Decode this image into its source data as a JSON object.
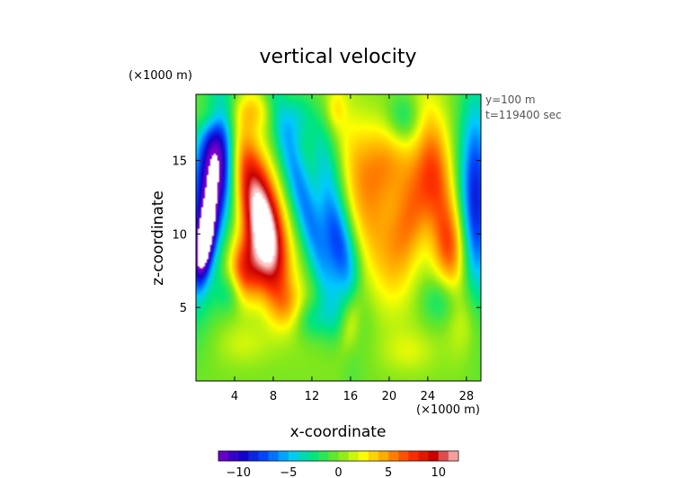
{
  "chart_data": {
    "type": "heatmap",
    "title": "vertical velocity",
    "xlabel": "x-coordinate",
    "ylabel": "z-coordinate",
    "x_unit_label": "(×1000 m)",
    "y_unit_label": "(×1000 m)",
    "annotations": [
      "y=100 m",
      "t=119400 sec"
    ],
    "xlim": [
      0,
      29.5
    ],
    "ylim": [
      0,
      19.5
    ],
    "x_ticks": [
      4,
      8,
      12,
      16,
      20,
      24,
      28
    ],
    "y_ticks": [
      5,
      10,
      15
    ],
    "x_tick_labels": [
      "4",
      "8",
      "12",
      "16",
      "20",
      "24",
      "28"
    ],
    "y_tick_labels": [
      "5",
      "10",
      "15"
    ],
    "colorbar": {
      "range": [
        -12,
        12
      ],
      "ticks": [
        -10,
        -5,
        0,
        5,
        10
      ],
      "tick_labels": [
        "−10",
        "−5",
        "0",
        "5",
        "10"
      ],
      "stops": [
        "#7a00c8",
        "#1400c8",
        "#0050ff",
        "#00c8ff",
        "#00e678",
        "#78e61e",
        "#ffff00",
        "#ffa000",
        "#ff3200",
        "#c80000",
        "#ffc8c8"
      ]
    },
    "grid": false,
    "features": [
      {
        "x": 1.3,
        "z": 13.0,
        "value": -9.5,
        "sx": 1.4,
        "sz": 5.0,
        "tilt": 0.15
      },
      {
        "x": 2.6,
        "z": 15.5,
        "value": -6.0,
        "sx": 1.2,
        "sz": 3.0,
        "tilt": 0.1
      },
      {
        "x": 0.9,
        "z": 9.5,
        "value": -12.0,
        "sx": 0.6,
        "sz": 1.8,
        "tilt": 0.2
      },
      {
        "x": 5.8,
        "z": 13.5,
        "value": 6.5,
        "sx": 1.5,
        "sz": 4.5,
        "tilt": -0.45
      },
      {
        "x": 7.1,
        "z": 9.8,
        "value": 11.0,
        "sx": 1.3,
        "sz": 2.8,
        "tilt": -0.2
      },
      {
        "x": 5.0,
        "z": 7.5,
        "value": 7.0,
        "sx": 1.2,
        "sz": 1.6,
        "tilt": 0.0
      },
      {
        "x": 11.0,
        "z": 12.5,
        "value": -6.0,
        "sx": 1.0,
        "sz": 6.0,
        "tilt": -0.4
      },
      {
        "x": 14.8,
        "z": 9.5,
        "value": -8.0,
        "sx": 1.2,
        "sz": 3.0,
        "tilt": -0.3
      },
      {
        "x": 13.5,
        "z": 15.5,
        "value": -4.0,
        "sx": 1.3,
        "sz": 2.5,
        "tilt": -0.3
      },
      {
        "x": 17.5,
        "z": 12.0,
        "value": 4.5,
        "sx": 2.2,
        "sz": 4.5,
        "tilt": -0.4
      },
      {
        "x": 20.0,
        "z": 15.0,
        "value": 4.0,
        "sx": 2.0,
        "sz": 2.0,
        "tilt": 0.0
      },
      {
        "x": 22.5,
        "z": 11.5,
        "value": 5.0,
        "sx": 1.5,
        "sz": 3.0,
        "tilt": 0.3
      },
      {
        "x": 25.2,
        "z": 13.0,
        "value": 5.0,
        "sx": 1.3,
        "sz": 4.5,
        "tilt": -0.2
      },
      {
        "x": 26.5,
        "z": 9.0,
        "value": 4.0,
        "sx": 1.3,
        "sz": 2.0,
        "tilt": 0.0
      },
      {
        "x": 28.9,
        "z": 12.0,
        "value": -9.0,
        "sx": 1.2,
        "sz": 5.0,
        "tilt": 0.0
      },
      {
        "x": 21.5,
        "z": 17.8,
        "value": -3.0,
        "sx": 1.2,
        "sz": 1.2,
        "tilt": 0.0
      },
      {
        "x": 12.0,
        "z": 4.2,
        "value": -3.0,
        "sx": 1.5,
        "sz": 1.0,
        "tilt": 0.0
      },
      {
        "x": 9.5,
        "z": 5.0,
        "value": 3.0,
        "sx": 1.3,
        "sz": 1.2,
        "tilt": 0.0
      },
      {
        "x": 16.0,
        "z": 4.0,
        "value": 3.0,
        "sx": 0.8,
        "sz": 1.8,
        "tilt": 0.3
      },
      {
        "x": 25.5,
        "z": 5.5,
        "value": -3.0,
        "sx": 1.5,
        "sz": 1.2,
        "tilt": 0.0
      },
      {
        "x": 28.0,
        "z": 4.5,
        "value": 2.5,
        "sx": 1.2,
        "sz": 2.0,
        "tilt": 0.0
      },
      {
        "x": 3.5,
        "z": 6.0,
        "value": -3.0,
        "sx": 1.0,
        "sz": 1.0,
        "tilt": 0.0
      },
      {
        "x": 6.0,
        "z": 18.5,
        "value": 3.0,
        "sx": 1.5,
        "sz": 1.0,
        "tilt": 0.0
      },
      {
        "x": 1.5,
        "z": 18.0,
        "value": 3.0,
        "sx": 1.0,
        "sz": 1.0,
        "tilt": 0.0
      },
      {
        "x": 14.5,
        "z": 18.5,
        "value": 2.0,
        "sx": 0.7,
        "sz": 1.0,
        "tilt": 0.0
      },
      {
        "x": 10.5,
        "z": 18.0,
        "value": -2.5,
        "sx": 1.0,
        "sz": 1.2,
        "tilt": 0.0
      },
      {
        "x": 22.0,
        "z": 2.0,
        "value": 1.5,
        "sx": 2.0,
        "sz": 1.0,
        "tilt": 0.0
      },
      {
        "x": 5.0,
        "z": 2.5,
        "value": 1.5,
        "sx": 2.0,
        "sz": 1.0,
        "tilt": 0.0
      }
    ]
  }
}
